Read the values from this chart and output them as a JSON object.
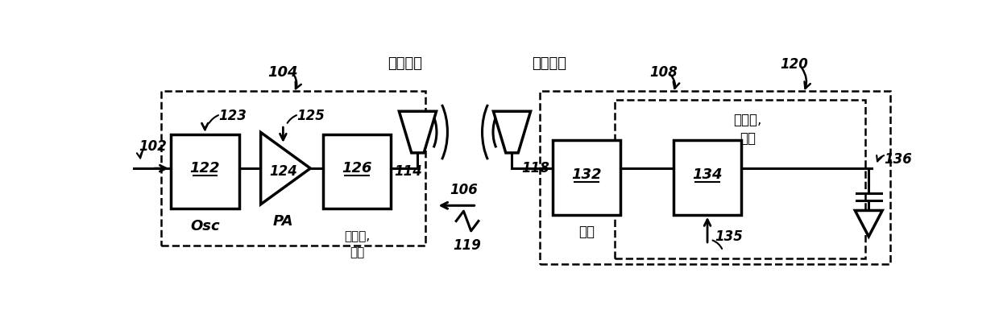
{
  "fig_width": 12.4,
  "fig_height": 3.95,
  "bg_color": "#ffffff",
  "label_102": "102",
  "label_104": "104",
  "label_123": "123",
  "label_125": "125",
  "label_122": "122",
  "label_124": "124",
  "label_126": "126",
  "label_114": "114",
  "label_118": "118",
  "label_106": "106",
  "label_119": "119",
  "label_108": "108",
  "label_120": "120",
  "label_132": "132",
  "label_134": "134",
  "label_135": "135",
  "label_136": "136",
  "text_osc": "Osc",
  "text_pa": "PA",
  "text_filter": "滤波器,\n匹配",
  "text_tx_ant": "发射天线",
  "text_rx_ant": "接收天线",
  "text_match": "匹配",
  "text_rect": "整流器,\n切换"
}
